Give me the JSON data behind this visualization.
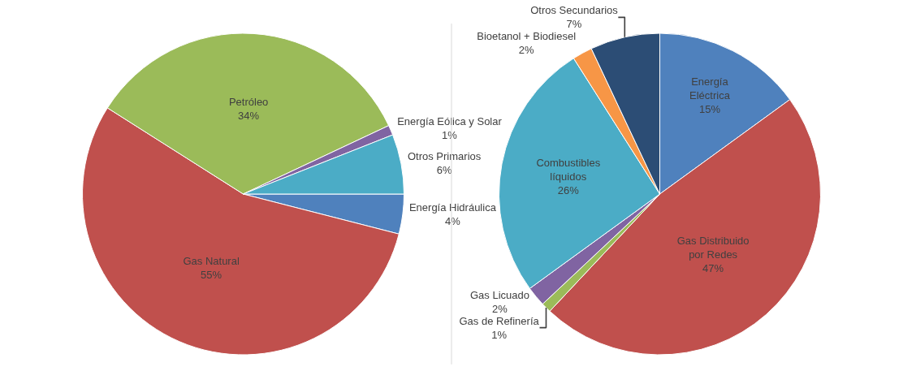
{
  "chart_data": [
    {
      "type": "pie",
      "categories": [
        "Energía Hidráulica",
        "Gas Natural",
        "Petróleo",
        "Energía Eólica y Solar",
        "Otros Primarios"
      ],
      "values": [
        4,
        55,
        34,
        1,
        6
      ],
      "value_labels": [
        "4%",
        "55%",
        "34%",
        "1%",
        "6%"
      ],
      "colors": [
        "#4f81bd",
        "#c0504d",
        "#9bbb59",
        "#8064a2",
        "#4bacc6"
      ]
    },
    {
      "type": "pie",
      "categories": [
        "Energía Eléctrica",
        "Gas Distribuido por Redes",
        "Gas de Refinería",
        "Gas Licuado",
        "Combustibles líquidos",
        "Bioetanol + Biodiesel",
        "Otros Secundarios"
      ],
      "values": [
        15,
        47,
        1,
        2,
        26,
        2,
        7
      ],
      "value_labels": [
        "15%",
        "47%",
        "1%",
        "2%",
        "26%",
        "2%",
        "7%"
      ],
      "colors": [
        "#4f81bd",
        "#c0504d",
        "#9bbb59",
        "#8064a2",
        "#4bacc6",
        "#f79646",
        "#2c4d75"
      ]
    }
  ]
}
